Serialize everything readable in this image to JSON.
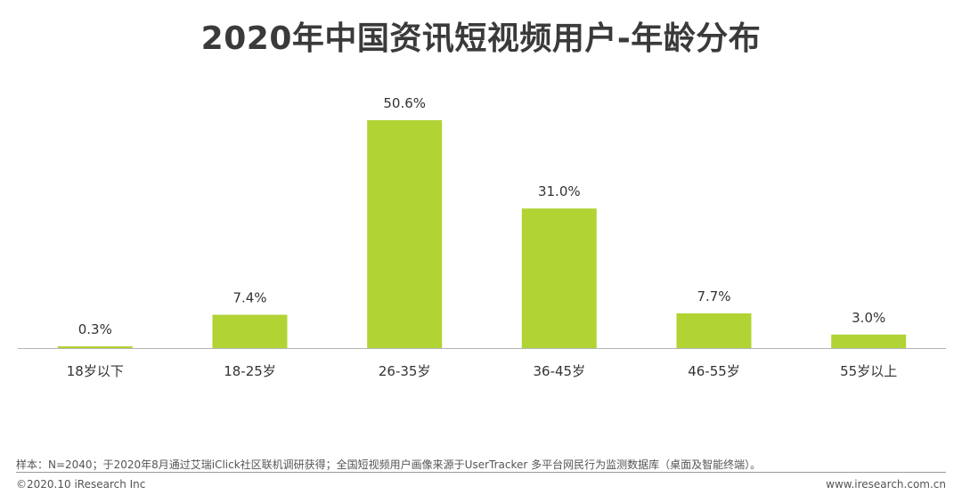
{
  "page": {
    "title": "2020年中国资讯短视频用户-年龄分布"
  },
  "chart_data": {
    "type": "bar",
    "title": "2020年中国资讯短视频用户-年龄分布",
    "xlabel": "",
    "ylabel": "",
    "categories": [
      "18岁以下",
      "18-25岁",
      "26-35岁",
      "36-45岁",
      "46-55岁",
      "55岁以上"
    ],
    "values": [
      0.3,
      7.4,
      50.6,
      31.0,
      7.7,
      3.0
    ],
    "value_labels": [
      "0.3%",
      "7.4%",
      "50.6%",
      "31.0%",
      "7.7%",
      "3.0%"
    ],
    "unit": "%",
    "ylim": [
      0,
      50.6
    ],
    "grid": false,
    "legend": "none",
    "bar_color": "#b1d334",
    "axis_color": "#b5b5b5"
  },
  "footer": {
    "note": "样本：N=2040；于2020年8月通过艾瑞iClick社区联机调研获得；全国短视频用户画像来源于UserTracker 多平台网民行为监测数据库（桌面及智能终端）。",
    "copyright": "©2020.10 iResearch Inc",
    "url": "www.iresearch.com.cn"
  }
}
